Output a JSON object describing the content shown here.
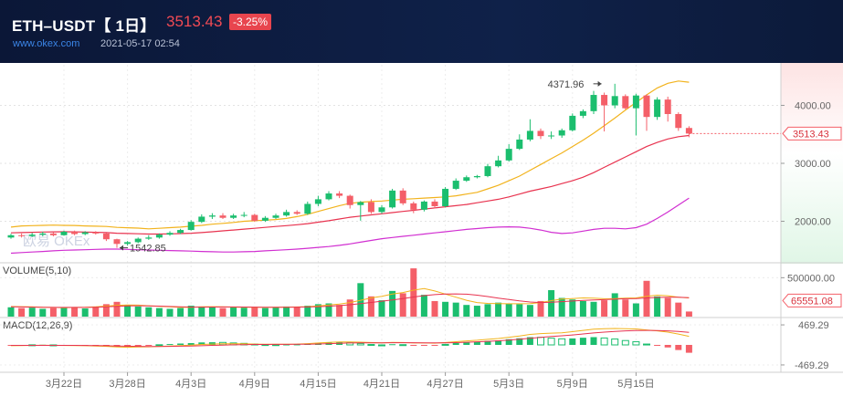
{
  "header": {
    "pair": "ETH–USDT【 1日】",
    "price": "3513.43",
    "change": "-3.25%",
    "site": "www.okex.com",
    "time": "2021-05-17 02:54"
  },
  "watermark": "欧易 OKEx",
  "colors": {
    "up": "#1bbe6e",
    "down": "#f45f68",
    "ma_short": "#f2b31d",
    "ma_mid": "#e8334f",
    "ma_long": "#d12fd1",
    "header_bg": "#0c1a3a"
  },
  "chart_data": {
    "type": "candlestick",
    "x_labels": [
      "3月22日",
      "3月28日",
      "4月3日",
      "4月9日",
      "4月15日",
      "4月21日",
      "4月27日",
      "5月3日",
      "5月9日",
      "5月15日"
    ],
    "x_label_index": [
      5,
      11,
      17,
      23,
      29,
      35,
      41,
      47,
      53,
      59
    ],
    "price_axis": {
      "ylim": [
        1300,
        4700
      ],
      "ticks": [
        2000,
        3000,
        4000
      ],
      "tick_labels": [
        "2000.00",
        "3000.00",
        "4000.00"
      ]
    },
    "current_price_label": "3513.43",
    "high_annotation": {
      "label": "4371.96",
      "index": 56,
      "value": 4371.96
    },
    "low_annotation": {
      "label": "1542.85",
      "index": 10,
      "value": 1542.85
    },
    "candles": [
      [
        1720,
        1760,
        1700,
        1785
      ],
      [
        1760,
        1745,
        1720,
        1790
      ],
      [
        1745,
        1770,
        1730,
        1800
      ],
      [
        1770,
        1790,
        1740,
        1820
      ],
      [
        1790,
        1760,
        1740,
        1810
      ],
      [
        1760,
        1820,
        1750,
        1840
      ],
      [
        1820,
        1780,
        1760,
        1840
      ],
      [
        1780,
        1810,
        1760,
        1830
      ],
      [
        1810,
        1790,
        1770,
        1830
      ],
      [
        1790,
        1690,
        1660,
        1800
      ],
      [
        1690,
        1610,
        1542.85,
        1700
      ],
      [
        1610,
        1640,
        1580,
        1660
      ],
      [
        1640,
        1700,
        1620,
        1720
      ],
      [
        1700,
        1720,
        1680,
        1760
      ],
      [
        1720,
        1770,
        1700,
        1790
      ],
      [
        1770,
        1800,
        1750,
        1830
      ],
      [
        1800,
        1850,
        1780,
        1870
      ],
      [
        1850,
        1990,
        1840,
        2020
      ],
      [
        1990,
        2080,
        1970,
        2120
      ],
      [
        2080,
        2100,
        2040,
        2140
      ],
      [
        2100,
        2060,
        2040,
        2140
      ],
      [
        2060,
        2100,
        2040,
        2130
      ],
      [
        2100,
        2110,
        2070,
        2160
      ],
      [
        2110,
        2010,
        1990,
        2130
      ],
      [
        2010,
        2060,
        1990,
        2090
      ],
      [
        2060,
        2100,
        2040,
        2130
      ],
      [
        2100,
        2160,
        2080,
        2200
      ],
      [
        2160,
        2130,
        2110,
        2190
      ],
      [
        2130,
        2300,
        2110,
        2340
      ],
      [
        2300,
        2380,
        2260,
        2440
      ],
      [
        2380,
        2480,
        2360,
        2520
      ],
      [
        2480,
        2440,
        2400,
        2520
      ],
      [
        2440,
        2280,
        2220,
        2460
      ],
      [
        2280,
        2330,
        2010,
        2350
      ],
      [
        2330,
        2160,
        2130,
        2380
      ],
      [
        2160,
        2240,
        2130,
        2280
      ],
      [
        2240,
        2530,
        2220,
        2560
      ],
      [
        2530,
        2310,
        2280,
        2570
      ],
      [
        2310,
        2200,
        2140,
        2340
      ],
      [
        2200,
        2340,
        2170,
        2360
      ],
      [
        2340,
        2260,
        2220,
        2380
      ],
      [
        2260,
        2560,
        2240,
        2590
      ],
      [
        2560,
        2700,
        2540,
        2740
      ],
      [
        2700,
        2760,
        2680,
        2790
      ],
      [
        2760,
        2780,
        2740,
        2800
      ],
      [
        2780,
        2950,
        2760,
        2990
      ],
      [
        2950,
        3050,
        2930,
        3130
      ],
      [
        3050,
        3250,
        3030,
        3330
      ],
      [
        3250,
        3410,
        3230,
        3500
      ],
      [
        3410,
        3560,
        3380,
        3760
      ],
      [
        3560,
        3470,
        3420,
        3600
      ],
      [
        3470,
        3480,
        3420,
        3550
      ],
      [
        3480,
        3570,
        3440,
        3600
      ],
      [
        3570,
        3820,
        3550,
        3860
      ],
      [
        3820,
        3900,
        3780,
        3930
      ],
      [
        3900,
        4180,
        3850,
        4250
      ],
      [
        4180,
        4000,
        3550,
        4220
      ],
      [
        4000,
        4160,
        3950,
        4371.96
      ],
      [
        4160,
        3950,
        3930,
        4190
      ],
      [
        3950,
        4170,
        3480,
        4200
      ],
      [
        4170,
        3800,
        3560,
        4190
      ],
      [
        3800,
        4100,
        3750,
        4140
      ],
      [
        4100,
        3850,
        3720,
        4150
      ],
      [
        3850,
        3610,
        3560,
        3880
      ],
      [
        3610,
        3513.43,
        3450,
        3640
      ]
    ],
    "ma_series": [
      {
        "name": "",
        "values": [
          1900,
          1920,
          1925,
          1930,
          1935,
          1930,
          1928,
          1920,
          1915,
          1910,
          1895,
          1888,
          1882,
          1870,
          1880,
          1890,
          1900,
          1915,
          1930,
          1950,
          1965,
          1980,
          2000,
          2010,
          2020,
          2030,
          2050,
          2080,
          2120,
          2170,
          2220,
          2270,
          2310,
          2330,
          2340,
          2350,
          2365,
          2380,
          2390,
          2400,
          2410,
          2420,
          2440,
          2470,
          2500,
          2560,
          2620,
          2700,
          2780,
          2880,
          2980,
          3080,
          3180,
          3290,
          3400,
          3520,
          3650,
          3780,
          3920,
          4050,
          4180,
          4300,
          4380,
          4420,
          4400
        ]
      },
      {
        "name": "",
        "values": [
          1800,
          1805,
          1810,
          1815,
          1818,
          1820,
          1818,
          1815,
          1810,
          1805,
          1795,
          1790,
          1785,
          1780,
          1780,
          1783,
          1788,
          1795,
          1805,
          1820,
          1835,
          1850,
          1865,
          1880,
          1895,
          1910,
          1925,
          1940,
          1960,
          1985,
          2010,
          2040,
          2070,
          2090,
          2110,
          2130,
          2150,
          2170,
          2190,
          2210,
          2230,
          2250,
          2270,
          2290,
          2320,
          2350,
          2380,
          2420,
          2470,
          2520,
          2560,
          2600,
          2650,
          2700,
          2760,
          2840,
          2930,
          3020,
          3110,
          3200,
          3290,
          3360,
          3420,
          3460,
          3480
        ]
      },
      {
        "name": "",
        "values": [
          1450,
          1460,
          1470,
          1480,
          1490,
          1500,
          1505,
          1510,
          1515,
          1520,
          1520,
          1515,
          1510,
          1505,
          1500,
          1495,
          1490,
          1485,
          1480,
          1475,
          1470,
          1470,
          1475,
          1480,
          1490,
          1500,
          1510,
          1520,
          1535,
          1550,
          1565,
          1585,
          1610,
          1640,
          1670,
          1700,
          1720,
          1740,
          1760,
          1780,
          1800,
          1820,
          1840,
          1860,
          1875,
          1890,
          1900,
          1905,
          1900,
          1880,
          1850,
          1810,
          1790,
          1800,
          1830,
          1860,
          1880,
          1880,
          1870,
          1890,
          1950,
          2050,
          2160,
          2280,
          2400
        ]
      }
    ],
    "volume": {
      "label": "VOLUME(5,10)",
      "tick_labels": [
        "500000.00"
      ],
      "ticks": [
        500000
      ],
      "ylim": [
        0,
        680000
      ],
      "current_label": "65551.08",
      "values": [
        120000,
        110000,
        115000,
        100000,
        110000,
        120000,
        115000,
        105000,
        130000,
        160000,
        190000,
        150000,
        130000,
        120000,
        110000,
        100000,
        110000,
        140000,
        130000,
        120000,
        110000,
        120000,
        115000,
        125000,
        110000,
        120000,
        130000,
        120000,
        140000,
        160000,
        170000,
        150000,
        220000,
        430000,
        260000,
        210000,
        330000,
        300000,
        620000,
        280000,
        200000,
        190000,
        180000,
        150000,
        140000,
        160000,
        180000,
        170000,
        160000,
        150000,
        200000,
        340000,
        240000,
        220000,
        200000,
        190000,
        210000,
        300000,
        220000,
        170000,
        460000,
        260000,
        240000,
        180000,
        65551.08
      ],
      "ma5": [
        130000,
        128000,
        125000,
        120000,
        118000,
        115000,
        118000,
        120000,
        125000,
        135000,
        145000,
        150000,
        148000,
        140000,
        132000,
        125000,
        118000,
        120000,
        125000,
        128000,
        126000,
        122000,
        120000,
        121000,
        119000,
        120000,
        122000,
        124000,
        128000,
        138000,
        150000,
        162000,
        180000,
        210000,
        240000,
        260000,
        290000,
        310000,
        340000,
        360000,
        330000,
        290000,
        250000,
        210000,
        180000,
        170000,
        166000,
        165000,
        165000,
        168000,
        180000,
        205000,
        225000,
        232000,
        240000,
        238000,
        230000,
        232000,
        238000,
        240000,
        260000,
        275000,
        268000,
        250000,
        240000
      ],
      "ma10": [
        125000,
        124000,
        122000,
        120000,
        119000,
        118000,
        118000,
        119000,
        121000,
        126000,
        132000,
        138000,
        140000,
        138000,
        135000,
        130000,
        126000,
        123000,
        122000,
        123000,
        124000,
        124000,
        123000,
        122000,
        121000,
        121000,
        121000,
        122000,
        124000,
        128000,
        134000,
        142000,
        152000,
        166000,
        182000,
        198000,
        214000,
        232000,
        252000,
        270000,
        282000,
        290000,
        292000,
        288000,
        276000,
        258000,
        238000,
        220000,
        202000,
        188000,
        180000,
        184000,
        192000,
        200000,
        208000,
        214000,
        218000,
        224000,
        230000,
        232000,
        240000,
        246000,
        250000,
        248000,
        244000
      ]
    },
    "macd": {
      "label": "MACD(12,26,9)",
      "tick_labels": [
        "469.29",
        "-469.29"
      ],
      "ticks": [
        469.29,
        -469.29
      ],
      "ylim": [
        -620,
        620
      ],
      "dif": [
        -20,
        -15,
        -10,
        -8,
        -10,
        -12,
        -15,
        -20,
        -25,
        -35,
        -50,
        -55,
        -50,
        -45,
        -35,
        -25,
        -15,
        -5,
        10,
        20,
        25,
        25,
        25,
        20,
        15,
        15,
        18,
        20,
        30,
        45,
        60,
        70,
        70,
        65,
        55,
        50,
        60,
        55,
        45,
        45,
        40,
        55,
        75,
        95,
        110,
        130,
        150,
        180,
        210,
        245,
        265,
        275,
        285,
        310,
        340,
        370,
        380,
        385,
        380,
        375,
        350,
        330,
        300,
        255,
        200
      ],
      "dea": [
        -10,
        -11,
        -11,
        -10,
        -10,
        -10,
        -11,
        -13,
        -15,
        -19,
        -25,
        -31,
        -35,
        -37,
        -37,
        -35,
        -31,
        -26,
        -19,
        -11,
        -4,
        2,
        7,
        10,
        11,
        12,
        13,
        14,
        17,
        22,
        30,
        38,
        44,
        48,
        50,
        50,
        52,
        52,
        51,
        50,
        48,
        49,
        54,
        62,
        72,
        84,
        97,
        113,
        132,
        154,
        176,
        196,
        214,
        234,
        256,
        279,
        299,
        316,
        329,
        338,
        340,
        338,
        330,
        315,
        292
      ],
      "hist": [
        -20,
        -10,
        2,
        4,
        0,
        -4,
        -8,
        -14,
        -20,
        -32,
        -50,
        -48,
        -30,
        -16,
        4,
        20,
        32,
        42,
        58,
        62,
        58,
        46,
        36,
        20,
        8,
        6,
        10,
        12,
        26,
        46,
        60,
        64,
        52,
        34,
        10,
        0,
        16,
        6,
        -12,
        -10,
        -16,
        12,
        42,
        66,
        76,
        92,
        106,
        134,
        156,
        182,
        178,
        158,
        142,
        152,
        168,
        182,
        162,
        138,
        102,
        74,
        20,
        -16,
        -60,
        -120,
        -184
      ]
    }
  }
}
